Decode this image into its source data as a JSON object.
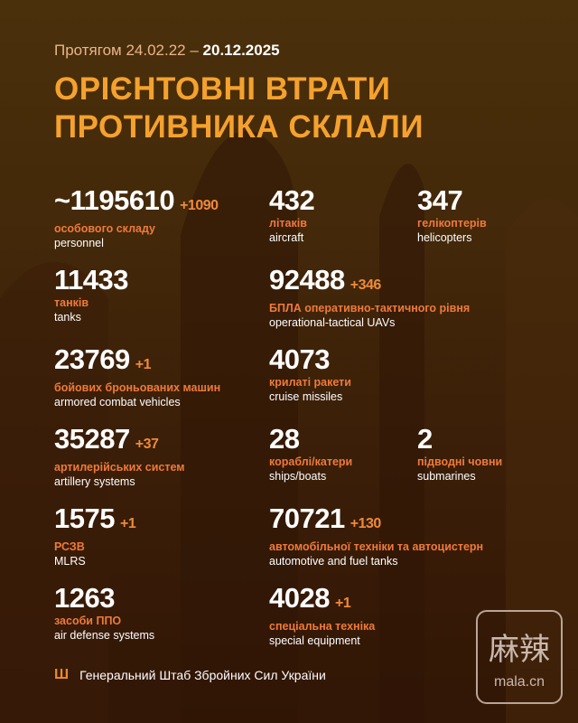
{
  "header": {
    "period_prefix": "Протягом 24.02.22 –",
    "period_end": "20.12.2025",
    "title_line1": "ОРІЄНТОВНІ ВТРАТИ",
    "title_line2": "ПРОТИВНИКА СКЛАЛИ"
  },
  "stats": [
    {
      "value": "~1195610",
      "delta": "+1090",
      "ua": "особового складу",
      "en": "personnel"
    },
    {
      "value": "432",
      "delta": "",
      "ua": "літаків",
      "en": "aircraft"
    },
    {
      "value": "347",
      "delta": "",
      "ua": "гелікоптерів",
      "en": "helicopters"
    },
    {
      "value": "11433",
      "delta": "",
      "ua": "танків",
      "en": "tanks"
    },
    {
      "value": "92488",
      "delta": "+346",
      "ua": "БПЛА оперативно-тактичного рівня",
      "en": "operational-tactical UAVs"
    },
    {
      "value": "23769",
      "delta": "+1",
      "ua": "бойових броньованих машин",
      "en": "armored combat vehicles"
    },
    {
      "value": "4073",
      "delta": "",
      "ua": "крилаті ракети",
      "en": "cruise missiles"
    },
    {
      "value": "35287",
      "delta": "+37",
      "ua": "артилерійських систем",
      "en": "artillery systems"
    },
    {
      "value": "28",
      "delta": "",
      "ua": "кораблі/катери",
      "en": "ships/boats"
    },
    {
      "value": "2",
      "delta": "",
      "ua": "підводні човни",
      "en": "submarines"
    },
    {
      "value": "1575",
      "delta": "+1",
      "ua": "РСЗВ",
      "en": "MLRS"
    },
    {
      "value": "70721",
      "delta": "+130",
      "ua": "автомобільної техніки та автоцистерн",
      "en": "automotive and fuel tanks"
    },
    {
      "value": "1263",
      "delta": "",
      "ua": "засоби ППО",
      "en": "air defense systems"
    },
    {
      "value": "4028",
      "delta": "+1",
      "ua": "спеціальна техніка",
      "en": "special equipment"
    }
  ],
  "footer": {
    "icon": "trident-icon",
    "text": "Генеральний Штаб Збройних Сил України"
  },
  "watermark": {
    "cn": "麻辣",
    "en": "mala.cn"
  },
  "colors": {
    "title": "#f5a12e",
    "label": "#ef7a3a",
    "delta": "#ef8a3a"
  }
}
